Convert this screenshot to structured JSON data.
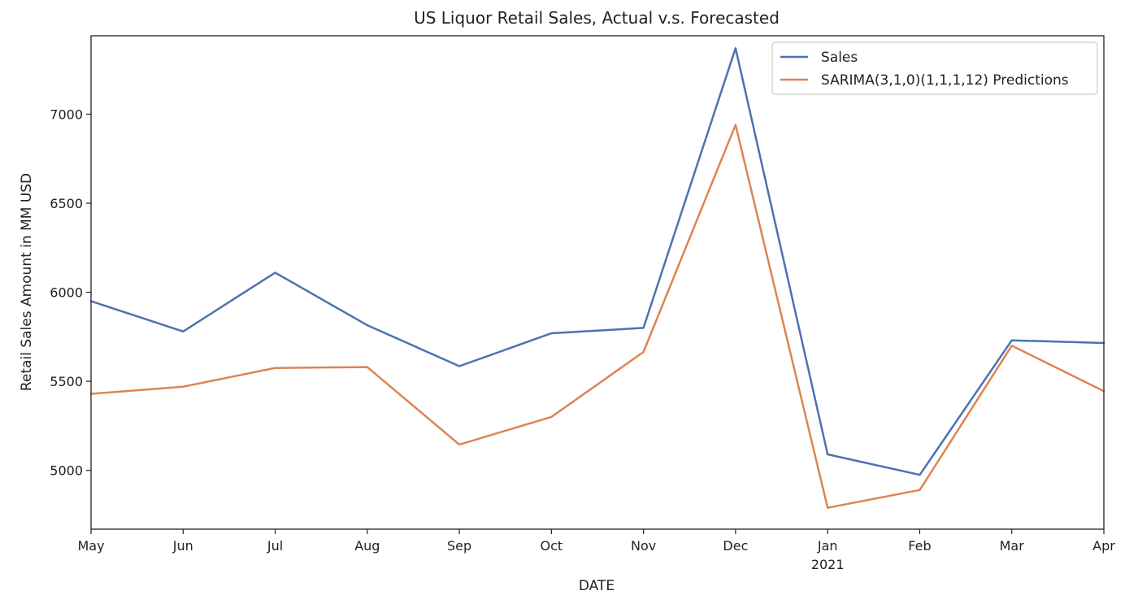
{
  "chart_data": {
    "type": "line",
    "title": "US Liquor Retail Sales, Actual v.s. Forecasted",
    "xlabel": "DATE",
    "ylabel": "Retail Sales Amount in MM USD",
    "x": [
      "May",
      "Jun",
      "Jul",
      "Aug",
      "Sep",
      "Oct",
      "Nov",
      "Dec",
      "Jan",
      "Feb",
      "Mar",
      "Apr"
    ],
    "x_year_label": {
      "under": "Jan",
      "text": "2021"
    },
    "ylim": [
      4670,
      7440
    ],
    "yticks": [
      5000,
      5500,
      6000,
      6500,
      7000
    ],
    "grid": false,
    "legend_position": "top-right",
    "series": [
      {
        "name": "Sales",
        "color": "#4c72b0",
        "values": [
          5950,
          5780,
          6110,
          5815,
          5585,
          5770,
          5800,
          7370,
          5090,
          4975,
          5730,
          5715
        ]
      },
      {
        "name": "SARIMA(3,1,0)(1,1,1,12) Predictions",
        "color": "#dd8452",
        "values": [
          5430,
          5470,
          5575,
          5580,
          5145,
          5300,
          5665,
          6940,
          4790,
          4890,
          5700,
          5445
        ]
      }
    ]
  }
}
